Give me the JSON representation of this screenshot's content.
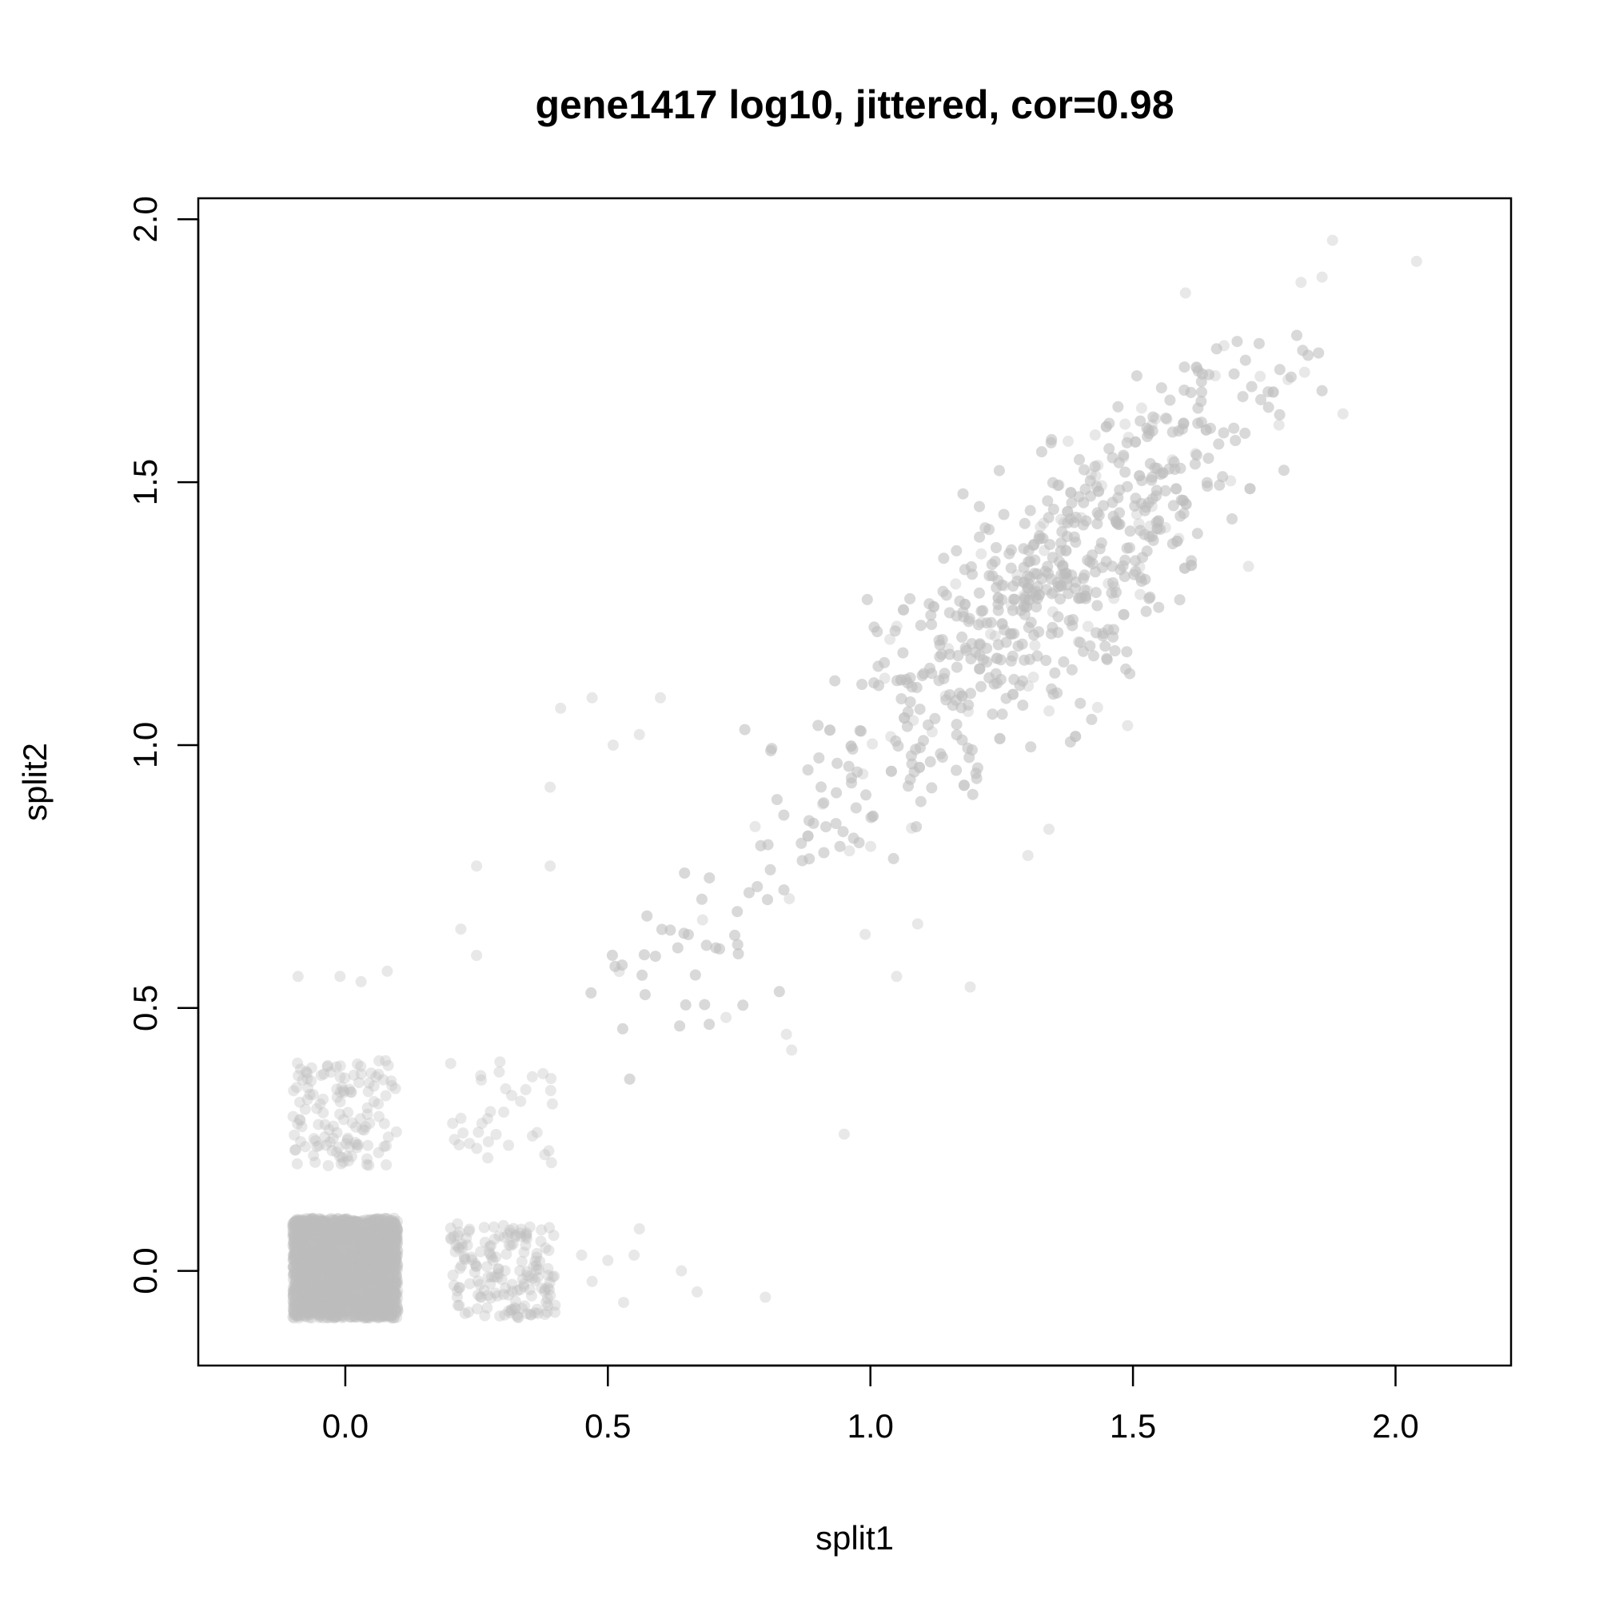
{
  "chart_data": {
    "type": "scatter",
    "title": "gene1417 log10, jittered, cor=0.98",
    "xlabel": "split1",
    "ylabel": "split2",
    "xlim": [
      -0.28,
      2.22
    ],
    "ylim": [
      -0.18,
      2.04
    ],
    "x_ticks": [
      0.0,
      0.5,
      1.0,
      1.5,
      2.0
    ],
    "y_ticks": [
      0.0,
      0.5,
      1.0,
      1.5,
      2.0
    ],
    "x_tick_labels": [
      "0.0",
      "0.5",
      "1.0",
      "1.5",
      "2.0"
    ],
    "y_tick_labels": [
      "0.0",
      "0.5",
      "1.0",
      "1.5",
      "2.0"
    ],
    "grid": false,
    "point_color": "#bebebe",
    "point_opacity": 0.35,
    "clusters": [
      {
        "note": "jittered cell (0,0)",
        "x_range": [
          -0.1,
          0.1
        ],
        "y_range": [
          -0.09,
          0.1
        ],
        "count": 2600
      },
      {
        "note": "jittered cell (0,0.3)",
        "x_range": [
          -0.1,
          0.1
        ],
        "y_range": [
          0.2,
          0.4
        ],
        "count": 130
      },
      {
        "note": "jittered cell (0.3,0)",
        "x_range": [
          0.2,
          0.4
        ],
        "y_range": [
          -0.09,
          0.09
        ],
        "count": 170
      },
      {
        "note": "jittered cell (0.3,0.3)",
        "x_range": [
          0.2,
          0.4
        ],
        "y_range": [
          0.2,
          0.4
        ],
        "count": 35
      }
    ],
    "sample_points": [
      {
        "x": -0.01,
        "y": 0.56
      },
      {
        "x": 0.03,
        "y": 0.55
      },
      {
        "x": 0.08,
        "y": 0.57
      },
      {
        "x": -0.09,
        "y": 0.56
      },
      {
        "x": 0.22,
        "y": 0.65
      },
      {
        "x": 0.25,
        "y": 0.6
      },
      {
        "x": 0.25,
        "y": 0.77
      },
      {
        "x": 0.39,
        "y": 0.92
      },
      {
        "x": 0.39,
        "y": 0.77
      },
      {
        "x": 0.41,
        "y": 1.07
      },
      {
        "x": 0.47,
        "y": 1.09
      },
      {
        "x": 0.51,
        "y": 1.0
      },
      {
        "x": 0.56,
        "y": 1.02
      },
      {
        "x": 0.6,
        "y": 1.09
      },
      {
        "x": 0.45,
        "y": 0.03
      },
      {
        "x": 0.47,
        "y": -0.02
      },
      {
        "x": 0.5,
        "y": 0.02
      },
      {
        "x": 0.53,
        "y": -0.06
      },
      {
        "x": 0.55,
        "y": 0.03
      },
      {
        "x": 0.56,
        "y": 0.08
      },
      {
        "x": 0.64,
        "y": 0.0
      },
      {
        "x": 0.67,
        "y": -0.04
      },
      {
        "x": 0.8,
        "y": -0.05
      },
      {
        "x": 0.95,
        "y": 0.26
      },
      {
        "x": 1.19,
        "y": 0.54
      },
      {
        "x": 1.05,
        "y": 0.56
      },
      {
        "x": 0.84,
        "y": 0.45
      },
      {
        "x": 0.85,
        "y": 0.42
      },
      {
        "x": 1.88,
        "y": 1.96
      },
      {
        "x": 2.04,
        "y": 1.92
      },
      {
        "x": 1.86,
        "y": 1.89
      },
      {
        "x": 1.82,
        "y": 1.88
      },
      {
        "x": 1.9,
        "y": 1.63
      },
      {
        "x": 1.6,
        "y": 1.86
      },
      {
        "x": 1.72,
        "y": 1.34
      },
      {
        "x": 1.3,
        "y": 0.79
      },
      {
        "x": 1.34,
        "y": 0.84
      },
      {
        "x": 1.09,
        "y": 0.66
      },
      {
        "x": 0.99,
        "y": 0.64
      }
    ],
    "trend_points": 1290
  }
}
